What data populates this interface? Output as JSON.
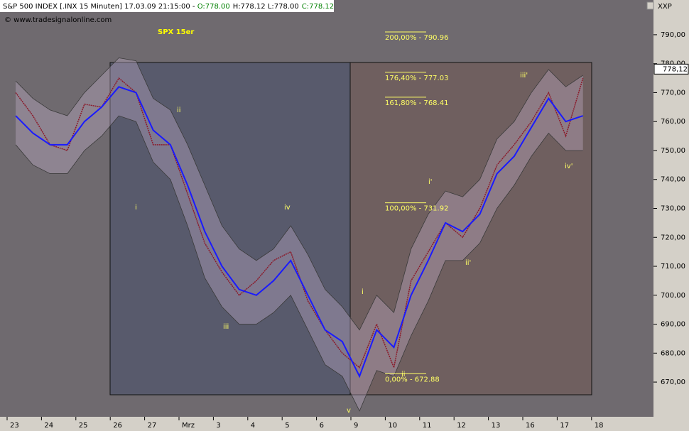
{
  "chart_data": {
    "type": "line",
    "header": [
      "S&P 500 INDEX [.INX  15 Minuten] 17.03.09 21:15:00 - ",
      "O:778.00",
      "H:778.12 L:778.00",
      "C:778.12"
    ],
    "source": "© www.tradesignalonline.com",
    "title": "SPX 15er",
    "axis_code": "XXP",
    "last_price_label": "778,12",
    "categories": [
      "23",
      null,
      "24",
      null,
      "25",
      null,
      "26",
      null,
      "27",
      null,
      "Mrz",
      null,
      "3",
      null,
      "4",
      null,
      "5",
      null,
      "6",
      null,
      "9",
      null,
      "10",
      null,
      "11",
      null,
      "12",
      null,
      "13",
      null,
      "16",
      null,
      "17",
      null,
      "18",
      null
    ],
    "series": [
      {
        "color": "#8b1a2a",
        "values": [
          770,
          762,
          752,
          750,
          766,
          765,
          775,
          770,
          752,
          752,
          735,
          718,
          708,
          700,
          705,
          712,
          715,
          698,
          688,
          680,
          675,
          690,
          675,
          705,
          715,
          725,
          720,
          730,
          745,
          752,
          760,
          770,
          755,
          775,
          null,
          null
        ]
      },
      {
        "color": "#3a3a3a",
        "values": [
          774,
          768,
          764,
          762,
          770,
          776,
          782,
          781,
          768,
          764,
          752,
          738,
          724,
          716,
          712,
          716,
          724,
          714,
          702,
          696,
          688,
          700,
          694,
          716,
          728,
          736,
          734,
          740,
          754,
          760,
          770,
          778,
          772,
          776,
          null,
          null
        ]
      },
      {
        "color": "#3a3a3a",
        "values": [
          752,
          745,
          742,
          742,
          750,
          755,
          762,
          760,
          746,
          740,
          724,
          706,
          696,
          690,
          690,
          694,
          700,
          688,
          676,
          672,
          660,
          674,
          672,
          686,
          698,
          712,
          712,
          718,
          730,
          738,
          748,
          756,
          750,
          750,
          null,
          null
        ]
      },
      {
        "color": "#1a1aff",
        "values": [
          762,
          756,
          752,
          752,
          760,
          765,
          772,
          770,
          757,
          752,
          738,
          722,
          710,
          702,
          700,
          705,
          712,
          700,
          688,
          684,
          672,
          688,
          682,
          700,
          712,
          725,
          722,
          728,
          742,
          748,
          758,
          768,
          760,
          762,
          null,
          null
        ]
      }
    ],
    "fib_levels": [
      {
        "label": "200,00% - 790.96",
        "value": 790.96
      },
      {
        "label": "176,40% - 777.03",
        "value": 777.03
      },
      {
        "label": "161,80% - 768.41",
        "value": 768.41
      },
      {
        "label": "100,00% - 731.92",
        "value": 731.92
      },
      {
        "label": "0,00% - 672.88",
        "value": 672.88
      }
    ],
    "wave_labels": [
      "i",
      "ii",
      "iii",
      "iv",
      "v",
      "i",
      "ii",
      "i'",
      "ii'",
      "iii'",
      "iv'"
    ],
    "ylim": [
      658,
      802
    ],
    "yticks": [
      {
        "value": 670,
        "label": "670,00"
      },
      {
        "value": 680,
        "label": "680,00"
      },
      {
        "value": 690,
        "label": "690,00"
      },
      {
        "value": 700,
        "label": "700,00"
      },
      {
        "value": 710,
        "label": "710,00"
      },
      {
        "value": 720,
        "label": "720,00"
      },
      {
        "value": 730,
        "label": "730,00"
      },
      {
        "value": 740,
        "label": "740,00"
      },
      {
        "value": 750,
        "label": "750,00"
      },
      {
        "value": 760,
        "label": "760,00"
      },
      {
        "value": 770,
        "label": "770,00"
      },
      {
        "value": 780,
        "label": "780,00"
      },
      {
        "value": 790,
        "label": "790,00"
      }
    ]
  }
}
